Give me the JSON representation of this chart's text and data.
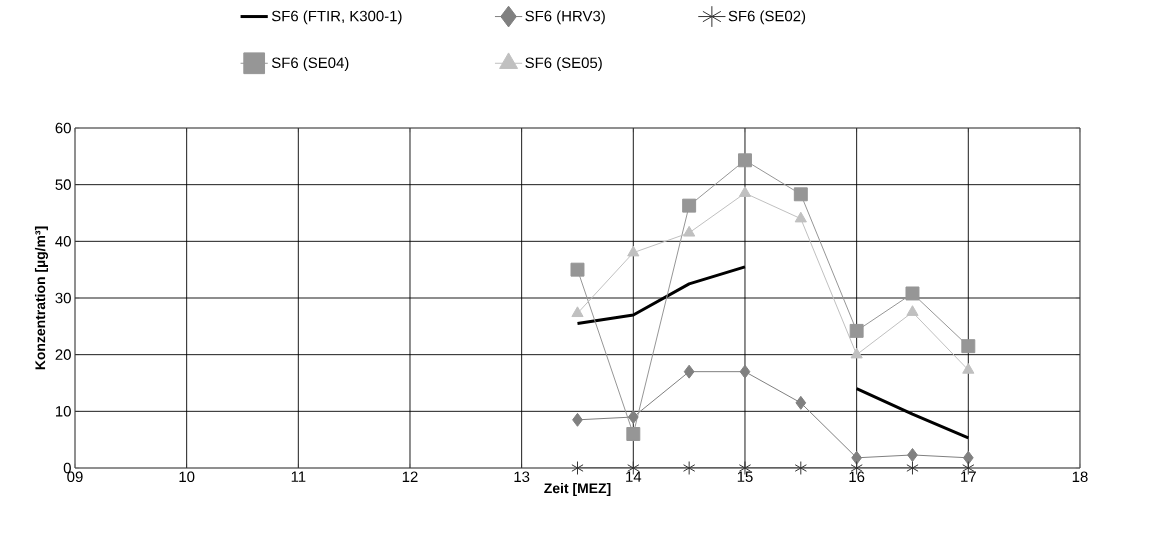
{
  "chart_data": {
    "type": "line",
    "xlabel": "Zeit [MEZ]",
    "ylabel": "Konzentration [µg/m³]",
    "x": [
      13.5,
      14,
      14.5,
      15,
      15.5,
      16,
      16.5,
      17
    ],
    "series": [
      {
        "name": "SF6 (FTIR, K300-1)",
        "color": "#000000",
        "marker": "none",
        "values": [
          25.5,
          27,
          32.5,
          35.5,
          null,
          14,
          9.5,
          5.3
        ]
      },
      {
        "name": "SF6 (HRV3)",
        "color": "#808080",
        "marker": "diamond",
        "values": [
          8.5,
          9,
          17,
          17,
          11.5,
          1.8,
          2.3,
          1.8
        ]
      },
      {
        "name": "SF6 (SE02)",
        "color": "#333333",
        "marker": "cross",
        "values": [
          0,
          0,
          0,
          0,
          0,
          0,
          0,
          0
        ]
      },
      {
        "name": "SF6 (SE04)",
        "color": "#969696",
        "marker": "square",
        "values": [
          35,
          6,
          46.3,
          54.3,
          48.3,
          24.2,
          30.8,
          21.5
        ]
      },
      {
        "name": "SF6 (SE05)",
        "color": "#c0c0c0",
        "marker": "triangle",
        "values": [
          27.3,
          38,
          41.5,
          48.5,
          44,
          20,
          27.5,
          17.3
        ]
      }
    ],
    "xlim": [
      9,
      18
    ],
    "xticks": [
      {
        "value": 9,
        "label": "09"
      },
      10,
      11,
      12,
      13,
      14,
      15,
      16,
      17,
      18
    ],
    "ylim": [
      0,
      60
    ],
    "yticks": [
      0,
      10,
      20,
      30,
      40,
      50,
      60
    ],
    "grid": true,
    "legend": "top"
  }
}
